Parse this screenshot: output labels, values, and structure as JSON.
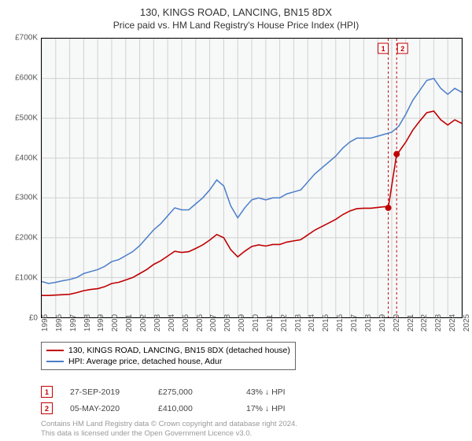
{
  "title": "130, KINGS ROAD, LANCING, BN15 8DX",
  "subtitle": "Price paid vs. HM Land Registry's House Price Index (HPI)",
  "chart": {
    "type": "line",
    "background_color": "#f7f8f8",
    "grid_color": "#d0d0d0",
    "label_fontsize": 10,
    "ymin": 0,
    "ymax": 700,
    "ytick_step": 100,
    "ytick_format_prefix": "£",
    "ytick_format_suffix": "K",
    "xmin": 1995,
    "xmax": 2025,
    "xticks": [
      1995,
      1996,
      1997,
      1998,
      1999,
      2000,
      2001,
      2002,
      2003,
      2004,
      2005,
      2006,
      2007,
      2008,
      2009,
      2010,
      2011,
      2012,
      2013,
      2014,
      2015,
      2016,
      2017,
      2018,
      2019,
      2020,
      2021,
      2022,
      2023,
      2024,
      2025
    ],
    "series": [
      {
        "name": "HPI: Average price, detached house, Adur",
        "color": "#4a7ec9",
        "line_width": 1.5,
        "points": [
          [
            1995,
            90
          ],
          [
            1995.5,
            85
          ],
          [
            1996,
            88
          ],
          [
            1996.5,
            92
          ],
          [
            1997,
            95
          ],
          [
            1997.5,
            100
          ],
          [
            1998,
            110
          ],
          [
            1998.5,
            115
          ],
          [
            1999,
            120
          ],
          [
            1999.5,
            128
          ],
          [
            2000,
            140
          ],
          [
            2000.5,
            145
          ],
          [
            2001,
            155
          ],
          [
            2001.5,
            165
          ],
          [
            2002,
            180
          ],
          [
            2002.5,
            200
          ],
          [
            2003,
            220
          ],
          [
            2003.5,
            235
          ],
          [
            2004,
            255
          ],
          [
            2004.5,
            275
          ],
          [
            2005,
            270
          ],
          [
            2005.5,
            270
          ],
          [
            2006,
            285
          ],
          [
            2006.5,
            300
          ],
          [
            2007,
            320
          ],
          [
            2007.5,
            345
          ],
          [
            2008,
            330
          ],
          [
            2008.5,
            280
          ],
          [
            2009,
            250
          ],
          [
            2009.5,
            275
          ],
          [
            2010,
            295
          ],
          [
            2010.5,
            300
          ],
          [
            2011,
            295
          ],
          [
            2011.5,
            300
          ],
          [
            2012,
            300
          ],
          [
            2012.5,
            310
          ],
          [
            2013,
            315
          ],
          [
            2013.5,
            320
          ],
          [
            2014,
            340
          ],
          [
            2014.5,
            360
          ],
          [
            2015,
            375
          ],
          [
            2015.5,
            390
          ],
          [
            2016,
            405
          ],
          [
            2016.5,
            425
          ],
          [
            2017,
            440
          ],
          [
            2017.5,
            450
          ],
          [
            2018,
            450
          ],
          [
            2018.5,
            450
          ],
          [
            2019,
            455
          ],
          [
            2019.5,
            460
          ],
          [
            2020,
            465
          ],
          [
            2020.5,
            480
          ],
          [
            2021,
            510
          ],
          [
            2021.5,
            545
          ],
          [
            2022,
            570
          ],
          [
            2022.5,
            595
          ],
          [
            2023,
            600
          ],
          [
            2023.5,
            575
          ],
          [
            2024,
            560
          ],
          [
            2024.5,
            575
          ],
          [
            2025,
            565
          ]
        ]
      },
      {
        "name": "130, KINGS ROAD, LANCING, BN15 8DX (detached house)",
        "color": "#c00000",
        "line_width": 1.6,
        "points": [
          [
            1995,
            55
          ],
          [
            1995.5,
            55
          ],
          [
            1996,
            56
          ],
          [
            1996.5,
            57
          ],
          [
            1997,
            58
          ],
          [
            1997.5,
            62
          ],
          [
            1998,
            67
          ],
          [
            1998.5,
            70
          ],
          [
            1999,
            72
          ],
          [
            1999.5,
            77
          ],
          [
            2000,
            85
          ],
          [
            2000.5,
            88
          ],
          [
            2001,
            94
          ],
          [
            2001.5,
            100
          ],
          [
            2002,
            110
          ],
          [
            2002.5,
            120
          ],
          [
            2003,
            133
          ],
          [
            2003.5,
            142
          ],
          [
            2004,
            154
          ],
          [
            2004.5,
            166
          ],
          [
            2005,
            163
          ],
          [
            2005.5,
            165
          ],
          [
            2006,
            173
          ],
          [
            2006.5,
            182
          ],
          [
            2007,
            194
          ],
          [
            2007.5,
            208
          ],
          [
            2008,
            200
          ],
          [
            2008.5,
            170
          ],
          [
            2009,
            152
          ],
          [
            2009.5,
            166
          ],
          [
            2010,
            178
          ],
          [
            2010.5,
            182
          ],
          [
            2011,
            179
          ],
          [
            2011.5,
            183
          ],
          [
            2012,
            183
          ],
          [
            2012.5,
            189
          ],
          [
            2013,
            192
          ],
          [
            2013.5,
            195
          ],
          [
            2014,
            207
          ],
          [
            2014.5,
            219
          ],
          [
            2015,
            228
          ],
          [
            2015.5,
            237
          ],
          [
            2016,
            246
          ],
          [
            2016.5,
            258
          ],
          [
            2017,
            267
          ],
          [
            2017.5,
            273
          ],
          [
            2018,
            274
          ],
          [
            2018.5,
            274
          ],
          [
            2019,
            276
          ],
          [
            2019.5,
            278
          ],
          [
            2019.75,
            275
          ],
          [
            2020.35,
            410
          ],
          [
            2020.5,
            415
          ],
          [
            2021,
            440
          ],
          [
            2021.5,
            470
          ],
          [
            2022,
            493
          ],
          [
            2022.5,
            514
          ],
          [
            2023,
            518
          ],
          [
            2023.5,
            496
          ],
          [
            2024,
            483
          ],
          [
            2024.5,
            496
          ],
          [
            2025,
            487
          ]
        ]
      }
    ],
    "event_markers": [
      {
        "index": 1,
        "x": 2019.75,
        "y": 275
      },
      {
        "index": 2,
        "x": 2020.35,
        "y": 410
      }
    ],
    "event_marker_line_color": "#c00000",
    "event_marker_line_dash": "3,3",
    "marker_dot_radius": 4
  },
  "legend": {
    "items": [
      {
        "color": "#c00000",
        "label": "130, KINGS ROAD, LANCING, BN15 8DX (detached house)"
      },
      {
        "color": "#4a7ec9",
        "label": "HPI: Average price, detached house, Adur"
      }
    ]
  },
  "events": [
    {
      "index": "1",
      "date": "27-SEP-2019",
      "price": "£275,000",
      "delta": "43% ↓ HPI"
    },
    {
      "index": "2",
      "date": "05-MAY-2020",
      "price": "£410,000",
      "delta": "17% ↓ HPI"
    }
  ],
  "footer_line1": "Contains HM Land Registry data © Crown copyright and database right 2024.",
  "footer_line2": "This data is licensed under the Open Government Licence v3.0."
}
